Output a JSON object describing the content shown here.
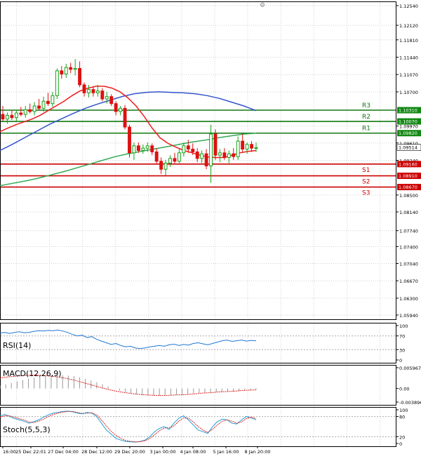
{
  "chart_data": {
    "type": "candlestick",
    "title": "",
    "colors": {
      "bull": "#16a316",
      "bear": "#dd1111",
      "ma_fast": "#ee1c1c",
      "ma_mid": "#3355cc",
      "ma_slow": "#33aa55",
      "resistance": "#117711",
      "support": "#cc0000",
      "label_box_resistance": "#118811",
      "label_box_support": "#cc0000",
      "price_box": "#ffffff",
      "grid": "#d0d0d0",
      "rsi_line": "#1f77d4",
      "macd_hist": "#999999",
      "macd_signal": "#dd2222",
      "stoch_main": "#1f9fd4",
      "stoch_signal": "#dd2222"
    },
    "x_labels": [
      "16:00",
      "25 Dec 22:01",
      "27 Dec 04:00",
      "28 Dec 12:00",
      "29 Dec 20:00",
      "3 Jan 00:00",
      "4 Jan 08:00",
      "5 Jan 16:00",
      "8 Jan 20:00"
    ],
    "price_axis": {
      "min": 1.0594,
      "max": 1.1254,
      "ticks": [
        "1.12540",
        "1.12120",
        "1.11810",
        "1.11440",
        "1.11070",
        "1.10700",
        "1.09970",
        "1.09610",
        "1.09240",
        "1.08500",
        "1.08140",
        "1.07740",
        "1.07400",
        "1.07040",
        "1.06670",
        "1.06300",
        "1.05940"
      ]
    },
    "last_price": "1.09514",
    "levels": [
      {
        "name": "R3",
        "value": "1.10310",
        "kind": "resistance"
      },
      {
        "name": "R2",
        "value": "1.10070",
        "kind": "resistance"
      },
      {
        "name": "R1",
        "value": "1.09820",
        "kind": "resistance"
      },
      {
        "name": "S1",
        "value": "1.09160",
        "kind": "support"
      },
      {
        "name": "S2",
        "value": "1.08910",
        "kind": "support"
      },
      {
        "name": "S3",
        "value": "1.08670",
        "kind": "support"
      }
    ],
    "candles": [
      {
        "o": 1.1022,
        "h": 1.104,
        "l": 1.1008,
        "c": 1.1012
      },
      {
        "o": 1.1012,
        "h": 1.1026,
        "l": 1.1002,
        "c": 1.102
      },
      {
        "o": 1.102,
        "h": 1.103,
        "l": 1.101,
        "c": 1.1015
      },
      {
        "o": 1.1015,
        "h": 1.1032,
        "l": 1.1008,
        "c": 1.1025
      },
      {
        "o": 1.1025,
        "h": 1.1038,
        "l": 1.1018,
        "c": 1.1022
      },
      {
        "o": 1.1022,
        "h": 1.104,
        "l": 1.1015,
        "c": 1.1032
      },
      {
        "o": 1.1032,
        "h": 1.1045,
        "l": 1.1024,
        "c": 1.1028
      },
      {
        "o": 1.1028,
        "h": 1.1048,
        "l": 1.102,
        "c": 1.104
      },
      {
        "o": 1.104,
        "h": 1.1055,
        "l": 1.103,
        "c": 1.1035
      },
      {
        "o": 1.1035,
        "h": 1.106,
        "l": 1.1028,
        "c": 1.105
      },
      {
        "o": 1.105,
        "h": 1.1068,
        "l": 1.104,
        "c": 1.1045
      },
      {
        "o": 1.1045,
        "h": 1.107,
        "l": 1.1038,
        "c": 1.1062
      },
      {
        "o": 1.1062,
        "h": 1.112,
        "l": 1.1055,
        "c": 1.1115
      },
      {
        "o": 1.1115,
        "h": 1.1125,
        "l": 1.1098,
        "c": 1.1108
      },
      {
        "o": 1.1108,
        "h": 1.113,
        "l": 1.11,
        "c": 1.1122
      },
      {
        "o": 1.1122,
        "h": 1.1132,
        "l": 1.111,
        "c": 1.1118
      },
      {
        "o": 1.1118,
        "h": 1.114,
        "l": 1.1105,
        "c": 1.112
      },
      {
        "o": 1.112,
        "h": 1.1135,
        "l": 1.108,
        "c": 1.1085
      },
      {
        "o": 1.1085,
        "h": 1.109,
        "l": 1.106,
        "c": 1.1068
      },
      {
        "o": 1.1068,
        "h": 1.1085,
        "l": 1.1058,
        "c": 1.1075
      },
      {
        "o": 1.1075,
        "h": 1.1082,
        "l": 1.106,
        "c": 1.1068
      },
      {
        "o": 1.1068,
        "h": 1.1085,
        "l": 1.106,
        "c": 1.1072
      },
      {
        "o": 1.1072,
        "h": 1.1078,
        "l": 1.105,
        "c": 1.1055
      },
      {
        "o": 1.1055,
        "h": 1.107,
        "l": 1.1045,
        "c": 1.106
      },
      {
        "o": 1.106,
        "h": 1.1065,
        "l": 1.104,
        "c": 1.1045
      },
      {
        "o": 1.1045,
        "h": 1.105,
        "l": 1.102,
        "c": 1.1028
      },
      {
        "o": 1.1028,
        "h": 1.104,
        "l": 1.102,
        "c": 1.1035
      },
      {
        "o": 1.1035,
        "h": 1.1042,
        "l": 1.099,
        "c": 1.0995
      },
      {
        "o": 1.0995,
        "h": 1.1,
        "l": 1.093,
        "c": 1.094
      },
      {
        "o": 1.094,
        "h": 1.0962,
        "l": 1.0925,
        "c": 1.0955
      },
      {
        "o": 1.0955,
        "h": 1.0962,
        "l": 1.094,
        "c": 1.0945
      },
      {
        "o": 1.0945,
        "h": 1.0958,
        "l": 1.0938,
        "c": 1.095
      },
      {
        "o": 1.095,
        "h": 1.0962,
        "l": 1.0942,
        "c": 1.0955
      },
      {
        "o": 1.0955,
        "h": 1.096,
        "l": 1.0935,
        "c": 1.0942
      },
      {
        "o": 1.0942,
        "h": 1.095,
        "l": 1.0915,
        "c": 1.0922
      },
      {
        "o": 1.0922,
        "h": 1.093,
        "l": 1.0895,
        "c": 1.0905
      },
      {
        "o": 1.0905,
        "h": 1.0925,
        "l": 1.0892,
        "c": 1.0918
      },
      {
        "o": 1.0918,
        "h": 1.0935,
        "l": 1.091,
        "c": 1.0928
      },
      {
        "o": 1.0928,
        "h": 1.094,
        "l": 1.0915,
        "c": 1.0922
      },
      {
        "o": 1.0922,
        "h": 1.0948,
        "l": 1.0918,
        "c": 1.094
      },
      {
        "o": 1.094,
        "h": 1.0962,
        "l": 1.0932,
        "c": 1.0955
      },
      {
        "o": 1.0955,
        "h": 1.0968,
        "l": 1.094,
        "c": 1.0948
      },
      {
        "o": 1.0948,
        "h": 1.096,
        "l": 1.0935,
        "c": 1.0942
      },
      {
        "o": 1.0942,
        "h": 1.095,
        "l": 1.092,
        "c": 1.0928
      },
      {
        "o": 1.0928,
        "h": 1.0945,
        "l": 1.0918,
        "c": 1.0938
      },
      {
        "o": 1.0938,
        "h": 1.0948,
        "l": 1.0905,
        "c": 1.0912
      },
      {
        "o": 1.0912,
        "h": 1.1,
        "l": 1.0876,
        "c": 1.098
      },
      {
        "o": 1.098,
        "h": 1.099,
        "l": 1.0925,
        "c": 1.0935
      },
      {
        "o": 1.0935,
        "h": 1.0948,
        "l": 1.092,
        "c": 1.094
      },
      {
        "o": 1.094,
        "h": 1.095,
        "l": 1.0925,
        "c": 1.093
      },
      {
        "o": 1.093,
        "h": 1.0945,
        "l": 1.0918,
        "c": 1.0938
      },
      {
        "o": 1.0938,
        "h": 1.095,
        "l": 1.0925,
        "c": 1.0932
      },
      {
        "o": 1.0932,
        "h": 1.0975,
        "l": 1.0925,
        "c": 1.0965
      },
      {
        "o": 1.0965,
        "h": 1.098,
        "l": 1.094,
        "c": 1.0948
      },
      {
        "o": 1.0948,
        "h": 1.0962,
        "l": 1.0938,
        "c": 1.0958
      },
      {
        "o": 1.0958,
        "h": 1.0965,
        "l": 1.0942,
        "c": 1.095
      },
      {
        "o": 1.095,
        "h": 1.0962,
        "l": 1.0942,
        "c": 1.0951
      }
    ],
    "ma_fast": [
      1.0985,
      1.0993,
      1.1,
      1.1006,
      1.1012,
      1.102,
      1.103,
      1.104,
      1.105,
      1.1062,
      1.1072,
      1.1078,
      1.1082,
      1.1082,
      1.1078,
      1.107,
      1.1057,
      1.104,
      1.1018,
      1.0993,
      1.0972,
      1.096,
      1.0952,
      1.0945,
      1.094,
      1.0935,
      1.0931,
      1.093,
      1.093,
      1.0935,
      1.094,
      1.0943,
      1.0945
    ],
    "ma_fast_start": 0,
    "ma_mid": [
      1.0945,
      1.0958,
      1.0972,
      1.0986,
      1.1,
      1.1012,
      1.1024,
      1.1035,
      1.1044,
      1.1052,
      1.106,
      1.1066,
      1.1069,
      1.107,
      1.1069,
      1.1068,
      1.1066,
      1.1062,
      1.1056,
      1.1048,
      1.104,
      1.103
    ],
    "ma_mid_start": 0,
    "ma_slow": [
      1.087,
      1.0875,
      1.088,
      1.0886,
      1.0893,
      1.09,
      1.0908,
      1.0916,
      1.0924,
      1.0932,
      1.0938,
      1.0943,
      1.0948,
      1.0953,
      1.0958,
      1.0963,
      1.0967,
      1.0972,
      1.0976,
      1.098,
      1.0982
    ],
    "ma_slow_start": 0,
    "rsi": {
      "label": "RSI(14)",
      "ymin": 0,
      "ymax": 100,
      "ticks": [
        "100",
        "70",
        "30",
        "0"
      ],
      "values": [
        78,
        80,
        77,
        80,
        82,
        79,
        80,
        83,
        85,
        84,
        86,
        85,
        87,
        84,
        80,
        74,
        70,
        72,
        65,
        68,
        60,
        55,
        50,
        45,
        48,
        42,
        38,
        40,
        35,
        33,
        35,
        38,
        40,
        42,
        40,
        44,
        46,
        42,
        45,
        43,
        48,
        50,
        47,
        44,
        48,
        52,
        56,
        58,
        54,
        56,
        58,
        55,
        57,
        56
      ]
    },
    "macd": {
      "label": "MACD(12,26,9)",
      "ymin": -0.003896,
      "ymax": 0.005967,
      "ticks": [
        "0.005967",
        "0.00",
        "-0.003896"
      ],
      "hist": [
        0.0008,
        0.0012,
        0.0016,
        0.002,
        0.0024,
        0.0028,
        0.0031,
        0.0034,
        0.0036,
        0.0037,
        0.0038,
        0.0038,
        0.0037,
        0.0035,
        0.0032,
        0.0028,
        0.0023,
        0.0018,
        0.0012,
        0.0006,
        0.0,
        -0.0006,
        -0.001,
        -0.0014,
        -0.0017,
        -0.0019,
        -0.002,
        -0.0021,
        -0.0021,
        -0.002,
        -0.0019,
        -0.0018,
        -0.0017,
        -0.0016,
        -0.0014,
        -0.0013,
        -0.0012,
        -0.0011,
        -0.001,
        -0.0009,
        -0.0009,
        -0.0008,
        -0.0007,
        -0.0006,
        -0.0005,
        -0.0004
      ],
      "signal": [
        0.003,
        0.0033,
        0.0035,
        0.0037,
        0.0038,
        0.0038,
        0.0037,
        0.0035,
        0.0032,
        0.0028,
        0.0023,
        0.0017,
        0.0011,
        0.0005,
        -0.0001,
        -0.0006,
        -0.001,
        -0.0013,
        -0.0016,
        -0.0018,
        -0.0019,
        -0.002,
        -0.002,
        -0.0019,
        -0.0018,
        -0.0017,
        -0.0015,
        -0.0013,
        -0.0012,
        -0.001,
        -0.0009,
        -0.0008,
        -0.0006,
        -0.0005,
        -0.0004
      ]
    },
    "stoch": {
      "label": "Stoch(5,5,3)",
      "ymin": 0,
      "ymax": 100,
      "ticks": [
        "100",
        "80",
        "20",
        "0"
      ],
      "main": [
        82,
        86,
        80,
        74,
        70,
        66,
        60,
        65,
        70,
        78,
        85,
        90,
        92,
        95,
        96,
        94,
        90,
        88,
        92,
        90,
        80,
        60,
        40,
        28,
        15,
        10,
        6,
        5,
        4,
        6,
        10,
        20,
        35,
        45,
        50,
        42,
        60,
        75,
        82,
        70,
        55,
        40,
        35,
        30,
        50,
        65,
        72,
        70,
        60,
        58,
        70,
        80,
        76,
        70
      ],
      "signal": [
        78,
        82,
        82,
        78,
        74,
        70,
        64,
        62,
        66,
        72,
        80,
        86,
        90,
        93,
        95,
        95,
        92,
        89,
        90,
        91,
        85,
        70,
        52,
        36,
        24,
        15,
        9,
        6,
        5,
        5,
        8,
        15,
        26,
        38,
        46,
        46,
        52,
        66,
        76,
        75,
        64,
        50,
        40,
        33,
        42,
        55,
        66,
        70,
        66,
        60,
        64,
        74,
        78,
        74
      ]
    }
  }
}
